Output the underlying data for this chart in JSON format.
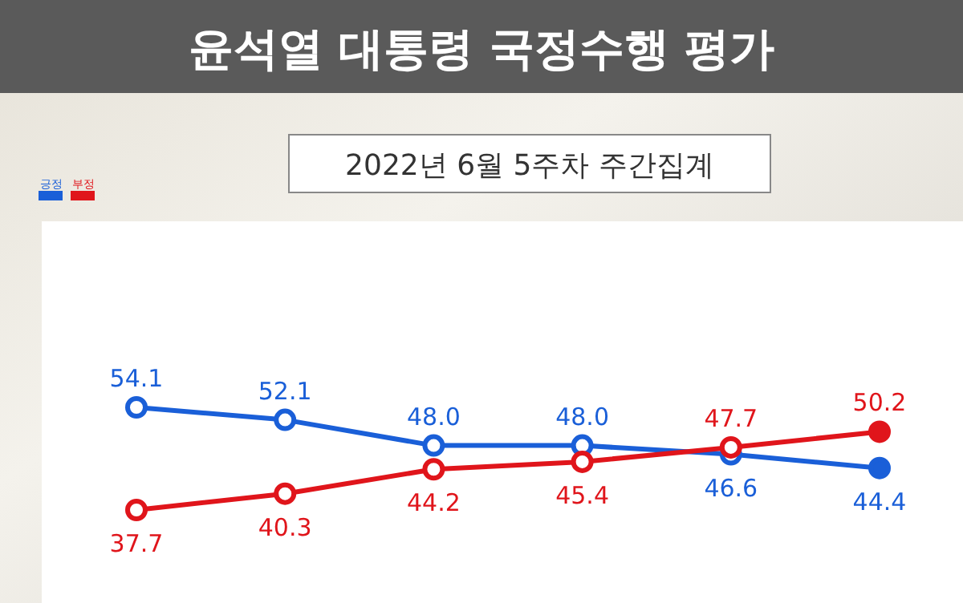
{
  "chart_data": {
    "type": "line",
    "title": "윤석열 대통령 국정수행 평가",
    "subtitle": "2022년 6월 5주차 주간집계",
    "categories": [
      null,
      null,
      null,
      null,
      null,
      null
    ],
    "series": [
      {
        "name": "긍정",
        "color": "#1a5fd8",
        "values": [
          54.1,
          52.1,
          48.0,
          48.0,
          46.6,
          44.4
        ],
        "value_labels": [
          "54.1",
          "52.1",
          "48.0",
          "48.0",
          "46.6",
          "44.4"
        ]
      },
      {
        "name": "부정",
        "color": "#e0151b",
        "values": [
          37.7,
          40.3,
          44.2,
          45.4,
          47.7,
          50.2
        ],
        "value_labels": [
          "37.7",
          "40.3",
          "44.2",
          "45.4",
          "47.7",
          "50.2"
        ]
      }
    ],
    "marker": "circle",
    "legend": "top left"
  }
}
